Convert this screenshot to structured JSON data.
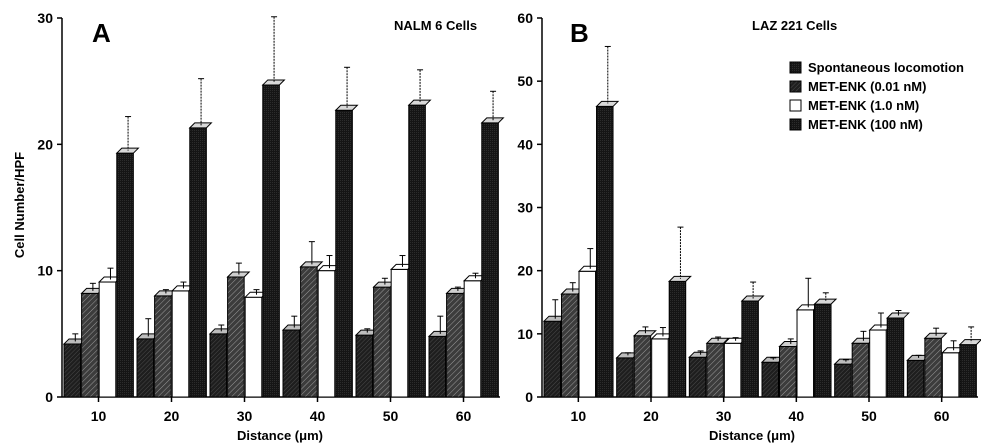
{
  "chart_data": [
    {
      "type": "bar",
      "panel": "A",
      "title": "NALM 6 Cells",
      "xlabel": "Distance (μm)",
      "ylabel": "Cell Number/HPF",
      "ylim": [
        0,
        30
      ],
      "yticks": [
        "0",
        "10",
        "20",
        "30"
      ],
      "categories": [
        "10",
        "20",
        "30",
        "40",
        "50",
        "60"
      ],
      "series": [
        {
          "name": "Spontaneous locomotion",
          "values": [
            4.2,
            4.6,
            5.0,
            5.3,
            4.9,
            4.8
          ],
          "errors": [
            0.6,
            1.4,
            0.5,
            0.9,
            0.3,
            1.4
          ]
        },
        {
          "name": "MET-ENK (0.01 nM)",
          "values": [
            8.2,
            8.0,
            9.5,
            10.3,
            8.7,
            8.2
          ],
          "errors": [
            0.6,
            0.3,
            0.9,
            1.8,
            0.5,
            0.3
          ]
        },
        {
          "name": "MET-ENK (1.0 nM)",
          "values": [
            9.1,
            8.4,
            7.9,
            10.0,
            10.1,
            9.2
          ],
          "errors": [
            0.9,
            0.5,
            0.4,
            1.0,
            0.9,
            0.4
          ]
        },
        {
          "name": "MET-ENK (100 nM)",
          "values": [
            19.3,
            21.3,
            24.7,
            22.7,
            23.1,
            21.7
          ],
          "errors": [
            2.7,
            3.7,
            5.2,
            3.2,
            2.6,
            2.3
          ]
        }
      ]
    },
    {
      "type": "bar",
      "panel": "B",
      "title": "LAZ 221 Cells",
      "xlabel": "Distance (μm)",
      "ylabel": "",
      "ylim": [
        0,
        60
      ],
      "yticks": [
        "0",
        "10",
        "20",
        "30",
        "40",
        "50",
        "60"
      ],
      "categories": [
        "10",
        "20",
        "30",
        "40",
        "50",
        "60"
      ],
      "series": [
        {
          "name": "Spontaneous locomotion",
          "values": [
            12.0,
            6.2,
            6.3,
            5.5,
            5.2,
            5.8
          ],
          "errors": [
            3.0,
            0.4,
            0.6,
            0.3,
            0.3,
            0.4
          ]
        },
        {
          "name": "MET-ENK (0.01 nM)",
          "values": [
            16.3,
            9.7,
            8.5,
            8.0,
            8.5,
            9.3
          ],
          "errors": [
            1.4,
            1.0,
            0.6,
            0.8,
            1.5,
            1.2
          ]
        },
        {
          "name": "MET-ENK (1.0 nM)",
          "values": [
            19.9,
            9.2,
            8.5,
            13.8,
            10.6,
            7.0
          ],
          "errors": [
            3.2,
            1.4,
            0.5,
            4.6,
            2.3,
            1.5
          ]
        },
        {
          "name": "MET-ENK (100 nM)",
          "values": [
            46.0,
            18.3,
            15.2,
            14.7,
            12.5,
            8.3
          ],
          "errors": [
            9.1,
            8.2,
            2.6,
            1.4,
            0.8,
            2.4
          ]
        }
      ]
    }
  ],
  "legend_colors": [
    "#1a1a1a",
    "#3a3a3a",
    "#ffffff",
    "#2a2a2a"
  ]
}
